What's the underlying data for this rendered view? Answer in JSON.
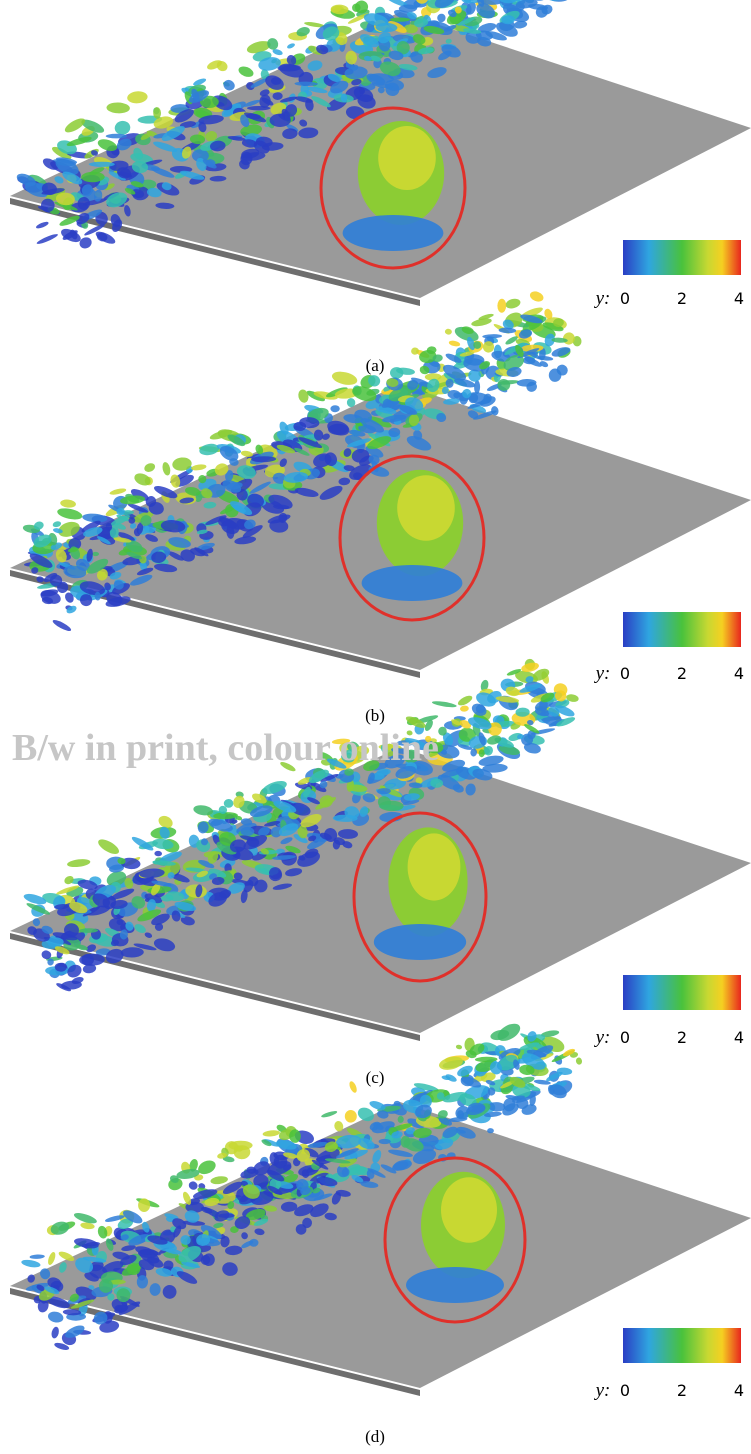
{
  "watermark": "B/w in print, colour online",
  "panels": [
    {
      "label": "(a)",
      "colorbar": {
        "title": "y:",
        "ticks": [
          0,
          2,
          4
        ]
      }
    },
    {
      "label": "(b)",
      "colorbar": {
        "title": "y:",
        "ticks": [
          0,
          2,
          4
        ]
      }
    },
    {
      "label": "(c)",
      "colorbar": {
        "title": "y:",
        "ticks": [
          0,
          2,
          4
        ]
      }
    },
    {
      "label": "(d)",
      "colorbar": {
        "title": "y:",
        "ticks": [
          0,
          2,
          4
        ]
      }
    }
  ]
}
